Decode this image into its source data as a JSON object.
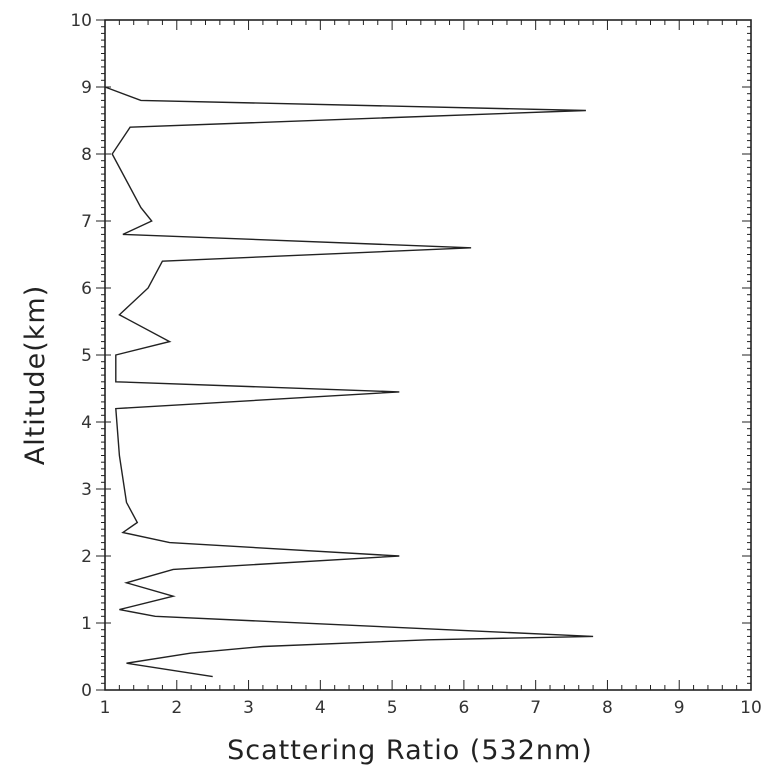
{
  "chart_data": {
    "type": "line",
    "title": "",
    "xlabel": "Scattering Ratio (532nm)",
    "ylabel": "Altitude(km)",
    "xlim": [
      1,
      10
    ],
    "ylim": [
      0,
      10
    ],
    "x_ticks": [
      "1",
      "2",
      "3",
      "4",
      "5",
      "6",
      "7",
      "8",
      "9",
      "10"
    ],
    "y_ticks": [
      "0",
      "1",
      "2",
      "3",
      "4",
      "5",
      "6",
      "7",
      "8",
      "9",
      "10"
    ],
    "grid": false,
    "legend": "none",
    "series": [
      {
        "color": "#222222",
        "points": [
          [
            2.5,
            0.2
          ],
          [
            1.3,
            0.4
          ],
          [
            2.2,
            0.55
          ],
          [
            3.2,
            0.65
          ],
          [
            5.5,
            0.75
          ],
          [
            7.8,
            0.8
          ],
          [
            1.7,
            1.1
          ],
          [
            1.2,
            1.2
          ],
          [
            1.95,
            1.4
          ],
          [
            1.3,
            1.6
          ],
          [
            1.95,
            1.8
          ],
          [
            5.1,
            2.0
          ],
          [
            1.9,
            2.2
          ],
          [
            1.25,
            2.35
          ],
          [
            1.45,
            2.5
          ],
          [
            1.3,
            2.8
          ],
          [
            1.2,
            3.5
          ],
          [
            1.15,
            4.2
          ],
          [
            5.1,
            4.45
          ],
          [
            1.15,
            4.6
          ],
          [
            1.15,
            5.0
          ],
          [
            1.9,
            5.2
          ],
          [
            1.2,
            5.6
          ],
          [
            1.6,
            6.0
          ],
          [
            1.8,
            6.4
          ],
          [
            6.1,
            6.6
          ],
          [
            1.25,
            6.8
          ],
          [
            1.65,
            7.0
          ],
          [
            1.5,
            7.2
          ],
          [
            1.1,
            8.0
          ],
          [
            1.35,
            8.4
          ],
          [
            7.7,
            8.65
          ],
          [
            1.5,
            8.8
          ],
          [
            1.0,
            9.0
          ]
        ]
      }
    ]
  }
}
